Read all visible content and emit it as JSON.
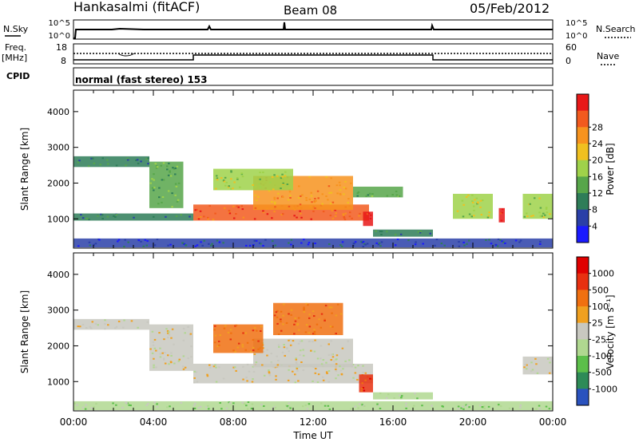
{
  "header": {
    "station": "Hankasalmi (fitACF)",
    "beam": "Beam 08",
    "date": "05/Feb/2012"
  },
  "chart_data": [
    {
      "type": "line",
      "panel": "noise",
      "left_label": "N.Sky",
      "right_label": "N.Search",
      "left_ticks": [
        "10^5",
        "10^0"
      ],
      "right_ticks": [
        "10^5",
        "10^0"
      ]
    },
    {
      "type": "line",
      "panel": "frequency-nave",
      "left_label_line1": "Freq.",
      "left_label_line2": "[MHz]",
      "left_ticks": [
        "18",
        "8"
      ],
      "right_label": "Nave",
      "right_ticks": [
        "60",
        "0"
      ],
      "freq_steps": [
        {
          "from": "00:00",
          "to": "06:00",
          "level": "low"
        },
        {
          "from": "06:00",
          "to": "18:00",
          "level": "high"
        },
        {
          "from": "18:00",
          "to": "24:00",
          "level": "low"
        }
      ]
    },
    {
      "type": "text",
      "panel": "cpid",
      "label": "CPID",
      "text": "normal (fast stereo) 153"
    },
    {
      "type": "heatmap",
      "panel": "power",
      "ylabel": "Slant Range [km]",
      "yticks": [
        "1000",
        "2000",
        "3000",
        "4000"
      ],
      "ylim": [
        180,
        4600
      ],
      "colorbar_label": "Power [dB]",
      "colorbar_ticks": [
        "4",
        "8",
        "12",
        "16",
        "20",
        "24",
        "28"
      ],
      "colorbar_colors": [
        "#1a1aff",
        "#2a3fa8",
        "#2e7d58",
        "#57a64a",
        "#9fd24a",
        "#f0c020",
        "#f7931e",
        "#f25a1e",
        "#e81818"
      ],
      "regions": [
        {
          "t0": 0.0,
          "t1": 3.8,
          "r0": 2450,
          "r1": 2750,
          "level": 2
        },
        {
          "t0": 3.8,
          "t1": 5.5,
          "r0": 1300,
          "r1": 2600,
          "level": 3
        },
        {
          "t0": 0.0,
          "t1": 6.0,
          "r0": 950,
          "r1": 1150,
          "level": 2
        },
        {
          "t0": 6.0,
          "t1": 14.8,
          "r0": 950,
          "r1": 1400,
          "level": 7
        },
        {
          "t0": 9.0,
          "t1": 14.0,
          "r0": 1250,
          "r1": 2200,
          "level": 6
        },
        {
          "t0": 7.0,
          "t1": 11.0,
          "r0": 1800,
          "r1": 2400,
          "level": 4
        },
        {
          "t0": 14.0,
          "t1": 16.5,
          "r0": 1600,
          "r1": 1900,
          "level": 3
        },
        {
          "t0": 14.5,
          "t1": 15.0,
          "r0": 800,
          "r1": 1200,
          "level": 8
        },
        {
          "t0": 15.0,
          "t1": 18.0,
          "r0": 500,
          "r1": 700,
          "level": 2
        },
        {
          "t0": 19.0,
          "t1": 21.0,
          "r0": 1000,
          "r1": 1700,
          "level": 4
        },
        {
          "t0": 21.3,
          "t1": 21.6,
          "r0": 900,
          "r1": 1300,
          "level": 8
        },
        {
          "t0": 22.5,
          "t1": 24.0,
          "r0": 1000,
          "r1": 1700,
          "level": 4
        },
        {
          "t0": 0.0,
          "t1": 24.0,
          "r0": 200,
          "r1": 450,
          "level": 1
        }
      ]
    },
    {
      "type": "heatmap",
      "panel": "velocity",
      "ylabel": "Slant Range [km]",
      "yticks": [
        "1000",
        "2000",
        "3000",
        "4000"
      ],
      "ylim": [
        180,
        4600
      ],
      "xticks": [
        "00:00",
        "04:00",
        "08:00",
        "12:00",
        "16:00",
        "20:00",
        "00:00"
      ],
      "xlabel": "Time UT",
      "colorbar_label": "Velocity [m s⁻¹]",
      "colorbar_ticks": [
        "1000",
        "500",
        "100",
        "25",
        "-25",
        "-100",
        "-500",
        "-1000"
      ],
      "colorbar_colors": [
        "#2a52be",
        "#2e8b57",
        "#5cbf4a",
        "#b0d890",
        "#c8c8c0",
        "#f0a020",
        "#f07010",
        "#e83010",
        "#e00000"
      ],
      "regions": [
        {
          "t0": 0.0,
          "t1": 3.8,
          "r0": 2450,
          "r1": 2750,
          "level": 4
        },
        {
          "t0": 3.8,
          "t1": 6.0,
          "r0": 1300,
          "r1": 2600,
          "level": 4
        },
        {
          "t0": 6.0,
          "t1": 15.0,
          "r0": 950,
          "r1": 1500,
          "level": 4
        },
        {
          "t0": 9.0,
          "t1": 14.0,
          "r0": 1400,
          "r1": 2200,
          "level": 4
        },
        {
          "t0": 7.0,
          "t1": 9.5,
          "r0": 1800,
          "r1": 2600,
          "level": 6
        },
        {
          "t0": 10.0,
          "t1": 13.5,
          "r0": 2300,
          "r1": 3200,
          "level": 6
        },
        {
          "t0": 14.3,
          "t1": 15.0,
          "r0": 700,
          "r1": 1200,
          "level": 7
        },
        {
          "t0": 15.0,
          "t1": 18.0,
          "r0": 500,
          "r1": 700,
          "level": 3
        },
        {
          "t0": 22.5,
          "t1": 24.0,
          "r0": 1200,
          "r1": 1700,
          "level": 4
        },
        {
          "t0": 0.0,
          "t1": 24.0,
          "r0": 200,
          "r1": 450,
          "level": 3
        }
      ]
    }
  ]
}
